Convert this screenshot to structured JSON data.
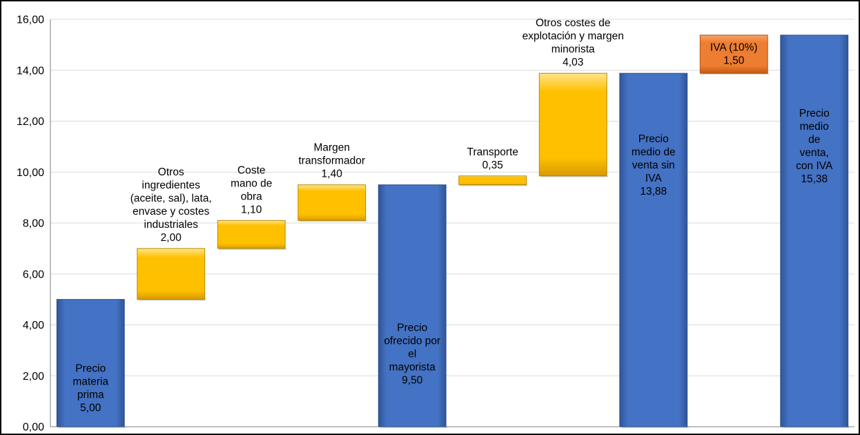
{
  "chart_data": {
    "type": "bar",
    "subtype": "waterfall",
    "ylim": [
      0,
      16
    ],
    "y_ticks": [
      "0,00",
      "2,00",
      "4,00",
      "6,00",
      "8,00",
      "10,00",
      "12,00",
      "14,00",
      "16,00"
    ],
    "y_tick_values": [
      0,
      2,
      4,
      6,
      8,
      10,
      12,
      14,
      16
    ],
    "grid": true,
    "legend": "none",
    "colors": {
      "total": "#4472C4",
      "increment": "#FFC000",
      "tax": "#ED7D31"
    },
    "bars": [
      {
        "label_lines": [
          "Precio",
          "materia",
          "prima"
        ],
        "value_text": "5,00",
        "base": 0,
        "value": 5.0,
        "kind": "total",
        "label_position": "inside"
      },
      {
        "label_lines": [
          "Otros",
          "ingredientes",
          "(aceite, sal), lata,",
          "envase y costes",
          "industriales"
        ],
        "value_text": "2,00",
        "base": 5.0,
        "value": 2.0,
        "kind": "increment",
        "label_position": "above"
      },
      {
        "label_lines": [
          "Coste",
          "mano de",
          "obra"
        ],
        "value_text": "1,10",
        "base": 7.0,
        "value": 1.1,
        "kind": "increment",
        "label_position": "above"
      },
      {
        "label_lines": [
          "Margen",
          "transformador"
        ],
        "value_text": "1,40",
        "base": 8.1,
        "value": 1.4,
        "kind": "increment",
        "label_position": "above"
      },
      {
        "label_lines": [
          "Precio",
          "ofrecido por",
          "el",
          "mayorista"
        ],
        "value_text": "9,50",
        "base": 0,
        "value": 9.5,
        "kind": "total",
        "label_position": "inside"
      },
      {
        "label_lines": [
          "Transporte"
        ],
        "value_text": "0,35",
        "base": 9.5,
        "value": 0.35,
        "kind": "increment",
        "label_position": "above"
      },
      {
        "label_lines": [
          "Otros costes de",
          "explotación y margen",
          "minorista"
        ],
        "value_text": "4,03",
        "base": 9.85,
        "value": 4.03,
        "kind": "increment",
        "label_position": "above"
      },
      {
        "label_lines": [
          "Precio",
          "medio de",
          "venta sin",
          "IVA"
        ],
        "value_text": "13,88",
        "base": 0,
        "value": 13.88,
        "kind": "total",
        "label_position": "inside"
      },
      {
        "label_lines": [
          "IVA (10%)"
        ],
        "value_text": "1,50",
        "base": 13.88,
        "value": 1.5,
        "kind": "tax",
        "label_position": "inside"
      },
      {
        "label_lines": [
          "Precio",
          "medio",
          "de",
          "venta,",
          "con IVA"
        ],
        "value_text": "15,38",
        "base": 0,
        "value": 15.38,
        "kind": "total",
        "label_position": "inside"
      }
    ]
  }
}
